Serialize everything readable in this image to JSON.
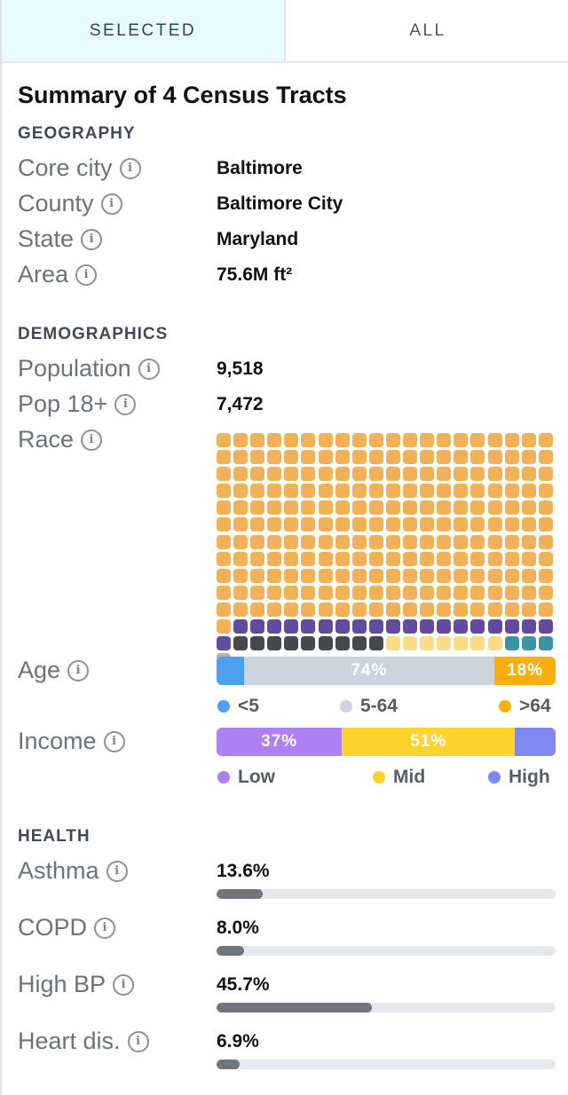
{
  "tabs": {
    "selected": "SELECTED",
    "all": "ALL"
  },
  "title": "Summary of 4 Census Tracts",
  "geography": {
    "header": "GEOGRAPHY",
    "rows": [
      {
        "label": "Core city",
        "value": "Baltimore"
      },
      {
        "label": "County",
        "value": "Baltimore City"
      },
      {
        "label": "State",
        "value": "Maryland"
      },
      {
        "label": "Area",
        "value": "75.6M ft²"
      }
    ]
  },
  "demographics": {
    "header": "DEMOGRAPHICS",
    "population": {
      "label": "Population",
      "value": "9,518"
    },
    "pop18": {
      "label": "Pop 18+",
      "value": "7,472"
    },
    "race": {
      "label": "Race",
      "squares": [
        {
          "color": "#F2B156",
          "count": 221
        },
        {
          "color": "#624B9E",
          "count": 20
        },
        {
          "color": "#43494F",
          "count": 9
        },
        {
          "color": "#FBDA88",
          "count": 7
        },
        {
          "color": "#3A94A4",
          "count": 3
        },
        {
          "color": "#B8B3A7",
          "count": 1
        }
      ]
    },
    "age": {
      "label": "Age",
      "segments": [
        {
          "name": "<5",
          "value": 8,
          "text": "",
          "color": "#4DA0EE"
        },
        {
          "name": "5-64",
          "value": 74,
          "text": "74%",
          "color": "#CBD3DC"
        },
        {
          "name": ">64",
          "value": 18,
          "text": "18%",
          "color": "#F9AF0E"
        }
      ]
    },
    "income": {
      "label": "Income",
      "segments": [
        {
          "name": "Low",
          "value": 37,
          "text": "37%",
          "color": "#AD80F4"
        },
        {
          "name": "Mid",
          "value": 51,
          "text": "51%",
          "color": "#FFD22E"
        },
        {
          "name": "High",
          "value": 12,
          "text": "",
          "color": "#8088F2"
        }
      ]
    }
  },
  "health": {
    "header": "HEALTH",
    "rows": [
      {
        "label": "Asthma",
        "value": "13.6%",
        "fraction": 0.136
      },
      {
        "label": "COPD",
        "value": "8.0%",
        "fraction": 0.08
      },
      {
        "label": "High BP",
        "value": "45.7%",
        "fraction": 0.457
      },
      {
        "label": "Heart dis.",
        "value": "6.9%",
        "fraction": 0.069
      }
    ]
  },
  "info_glyph": "i"
}
